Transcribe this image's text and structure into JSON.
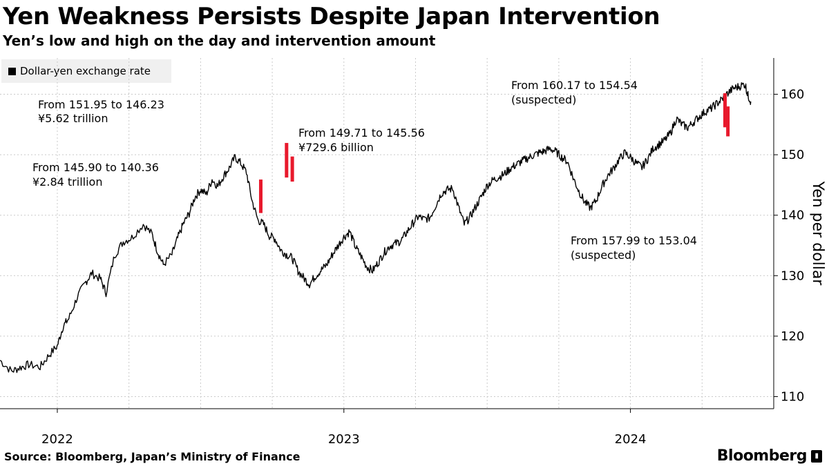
{
  "chart_data": {
    "type": "line",
    "title": "Yen Weakness Persists Despite Japan Intervention",
    "subtitle": "Yen’s low and high on the day and intervention amount",
    "legend": "Dollar-yen exchange rate",
    "ylabel": "Yen per dollar",
    "ylim": [
      108,
      166
    ],
    "yticks": [
      110,
      120,
      130,
      140,
      150,
      160
    ],
    "xlim": [
      2021.8,
      2024.5
    ],
    "xticks": [
      {
        "value": 2022.0,
        "label": "2022"
      },
      {
        "value": 2023.0,
        "label": "2023"
      },
      {
        "value": 2024.0,
        "label": "2024"
      }
    ],
    "series": [
      {
        "name": "Dollar-yen exchange rate",
        "color": "#000000",
        "points": [
          [
            2021.8,
            116.0
          ],
          [
            2021.84,
            114.2
          ],
          [
            2021.87,
            114.8
          ],
          [
            2021.9,
            115.3
          ],
          [
            2021.94,
            114.9
          ],
          [
            2021.97,
            116.8
          ],
          [
            2022.0,
            118.4
          ],
          [
            2022.02,
            121.6
          ],
          [
            2022.04,
            122.9
          ],
          [
            2022.07,
            126.5
          ],
          [
            2022.1,
            129.0
          ],
          [
            2022.12,
            130.4
          ],
          [
            2022.15,
            129.5
          ],
          [
            2022.17,
            127.2
          ],
          [
            2022.2,
            133.4
          ],
          [
            2022.23,
            135.6
          ],
          [
            2022.26,
            136.3
          ],
          [
            2022.3,
            138.5
          ],
          [
            2022.33,
            136.9
          ],
          [
            2022.35,
            134.0
          ],
          [
            2022.37,
            131.8
          ],
          [
            2022.4,
            133.5
          ],
          [
            2022.42,
            136.2
          ],
          [
            2022.44,
            138.6
          ],
          [
            2022.46,
            140.3
          ],
          [
            2022.48,
            143.0
          ],
          [
            2022.5,
            144.2
          ],
          [
            2022.52,
            143.5
          ],
          [
            2022.54,
            145.9
          ],
          [
            2022.56,
            144.8
          ],
          [
            2022.58,
            146.5
          ],
          [
            2022.6,
            147.8
          ],
          [
            2022.62,
            149.6
          ],
          [
            2022.64,
            148.6
          ],
          [
            2022.66,
            147.1
          ],
          [
            2022.68,
            142.3
          ],
          [
            2022.7,
            139.2
          ],
          [
            2022.72,
            138.5
          ],
          [
            2022.74,
            136.6
          ],
          [
            2022.76,
            136.1
          ],
          [
            2022.78,
            134.2
          ],
          [
            2022.8,
            133.5
          ],
          [
            2022.82,
            132.9
          ],
          [
            2022.84,
            130.8
          ],
          [
            2022.86,
            129.6
          ],
          [
            2022.88,
            128.6
          ],
          [
            2022.9,
            129.9
          ],
          [
            2022.92,
            130.9
          ],
          [
            2022.94,
            131.8
          ],
          [
            2022.96,
            133.5
          ],
          [
            2022.98,
            135.0
          ],
          [
            2023.0,
            136.4
          ],
          [
            2023.02,
            137.3
          ],
          [
            2023.04,
            134.8
          ],
          [
            2023.06,
            133.2
          ],
          [
            2023.08,
            131.5
          ],
          [
            2023.1,
            130.8
          ],
          [
            2023.12,
            132.2
          ],
          [
            2023.14,
            133.8
          ],
          [
            2023.16,
            134.9
          ],
          [
            2023.18,
            135.3
          ],
          [
            2023.2,
            135.8
          ],
          [
            2023.22,
            137.2
          ],
          [
            2023.24,
            138.6
          ],
          [
            2023.26,
            139.8
          ],
          [
            2023.28,
            139.3
          ],
          [
            2023.3,
            139.6
          ],
          [
            2023.32,
            141.6
          ],
          [
            2023.34,
            143.6
          ],
          [
            2023.36,
            144.2
          ],
          [
            2023.38,
            144.4
          ],
          [
            2023.4,
            141.3
          ],
          [
            2023.42,
            138.5
          ],
          [
            2023.44,
            139.7
          ],
          [
            2023.46,
            141.4
          ],
          [
            2023.48,
            143.1
          ],
          [
            2023.5,
            144.9
          ],
          [
            2023.52,
            145.8
          ],
          [
            2023.54,
            146.3
          ],
          [
            2023.56,
            146.8
          ],
          [
            2023.58,
            147.7
          ],
          [
            2023.6,
            148.3
          ],
          [
            2023.62,
            148.9
          ],
          [
            2023.64,
            149.4
          ],
          [
            2023.66,
            149.9
          ],
          [
            2023.68,
            150.3
          ],
          [
            2023.7,
            150.6
          ],
          [
            2023.72,
            151.0
          ],
          [
            2023.74,
            150.5
          ],
          [
            2023.76,
            149.6
          ],
          [
            2023.78,
            148.9
          ],
          [
            2023.8,
            146.2
          ],
          [
            2023.82,
            144.0
          ],
          [
            2023.84,
            142.2
          ],
          [
            2023.86,
            141.2
          ],
          [
            2023.88,
            142.4
          ],
          [
            2023.9,
            144.7
          ],
          [
            2023.92,
            146.5
          ],
          [
            2023.94,
            147.7
          ],
          [
            2023.96,
            149.2
          ],
          [
            2023.98,
            150.3
          ],
          [
            2024.0,
            149.6
          ],
          [
            2024.02,
            148.6
          ],
          [
            2024.04,
            147.9
          ],
          [
            2024.06,
            149.3
          ],
          [
            2024.08,
            151.1
          ],
          [
            2024.1,
            151.7
          ],
          [
            2024.12,
            152.4
          ],
          [
            2024.14,
            153.6
          ],
          [
            2024.16,
            156.0
          ],
          [
            2024.18,
            155.0
          ],
          [
            2024.2,
            154.5
          ],
          [
            2024.22,
            155.4
          ],
          [
            2024.24,
            156.3
          ],
          [
            2024.26,
            157.1
          ],
          [
            2024.28,
            157.6
          ],
          [
            2024.3,
            158.4
          ],
          [
            2024.32,
            159.2
          ],
          [
            2024.34,
            160.2
          ],
          [
            2024.36,
            161.0
          ],
          [
            2024.38,
            161.3
          ],
          [
            2024.4,
            161.7
          ],
          [
            2024.41,
            159.8
          ],
          [
            2024.42,
            158.8
          ]
        ]
      }
    ],
    "intervention_ranges": [
      {
        "x": 2022.71,
        "low": 140.36,
        "high": 145.9
      },
      {
        "x": 2022.8,
        "low": 146.23,
        "high": 151.95
      },
      {
        "x": 2022.82,
        "low": 145.56,
        "high": 149.71
      },
      {
        "x": 2024.33,
        "low": 154.54,
        "high": 160.17
      },
      {
        "x": 2024.34,
        "low": 153.04,
        "high": 157.99
      }
    ],
    "annotations": [
      {
        "line1": "From 151.95 to 146.23",
        "line2": "¥5.62 trillion"
      },
      {
        "line1": "From 145.90 to 140.36",
        "line2": "¥2.84 trillion"
      },
      {
        "line1": "From 149.71 to 145.56",
        "line2": "¥729.6 billion"
      },
      {
        "line1": "From 160.17 to 154.54",
        "line2": "(suspected)"
      },
      {
        "line1": "From 157.99 to 153.04",
        "line2": "(suspected)"
      }
    ]
  },
  "footer": {
    "source": "Source: Bloomberg, Japan’s Ministry of Finance",
    "brand": "Bloomberg"
  },
  "colors": {
    "line": "#000000",
    "intervention": "#e8192c",
    "grid": "#c9c9c9",
    "legend_bg": "#f0f0f0"
  }
}
